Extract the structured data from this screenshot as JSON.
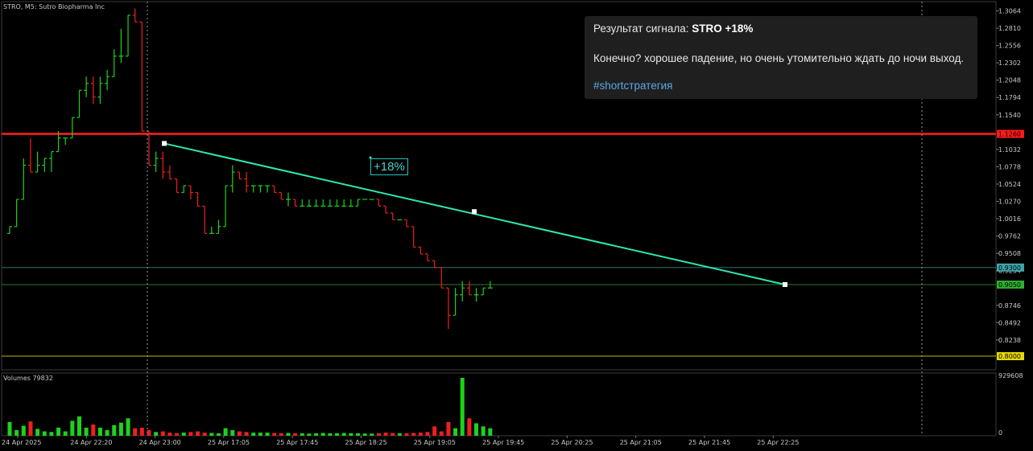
{
  "chart": {
    "symbol_title": "STRO, M5:  Sutro Biopharma Inc",
    "volumes_title": "Volumes 79832",
    "price_axis_ticks": [
      "1.3064",
      "1.2810",
      "1.2556",
      "1.2302",
      "1.2048",
      "1.1794",
      "1.1540",
      "1.1032",
      "1.0778",
      "1.0524",
      "1.0270",
      "1.0016",
      "0.9762",
      "0.9508",
      "0.9254",
      "0.8746",
      "0.8492",
      "0.8238"
    ],
    "price_tags": [
      {
        "label": "1.1260",
        "color": "#ff1a1a"
      },
      {
        "label": "0.9300",
        "color": "#3fa3a8"
      },
      {
        "label": "0.9050",
        "color": "#2fae2f"
      },
      {
        "label": "0.8000",
        "color": "#e6d800"
      }
    ],
    "volume_axis_ticks": [
      "929608",
      "0"
    ],
    "time_axis_labels": [
      "24 Apr 2025",
      "24 Apr 22:20",
      "24 Apr 23:00",
      "25 Apr 17:05",
      "25 Apr 17:45",
      "25 Apr 18:25",
      "25 Apr 19:05",
      "25 Apr 19:45",
      "25 Apr 20:25",
      "25 Apr 21:05",
      "25 Apr 21:45",
      "25 Apr 22:25"
    ],
    "signal_label": "+18%",
    "colors": {
      "up": "#1dd21d",
      "down": "#f01e1e",
      "trendline": "#2ee8b0",
      "resistance": "#ff2020",
      "support_green": "#2a7a2a",
      "support_teal": "#2f6e70",
      "support_yellow": "#c9b400",
      "grid": "#1a1a1a"
    }
  },
  "chart_data": {
    "type": "candlestick",
    "title": "STRO, M5:  Sutro Biopharma Inc",
    "price_range": [
      0.78,
      1.32
    ],
    "series": [
      {
        "name": "price_ohlc",
        "values": [
          [
            0.98,
            0.99,
            0.98,
            0.99
          ],
          [
            0.99,
            1.03,
            0.99,
            1.03
          ],
          [
            1.03,
            1.09,
            1.03,
            1.08
          ],
          [
            1.08,
            1.12,
            1.07,
            1.07
          ],
          [
            1.07,
            1.1,
            1.07,
            1.08
          ],
          [
            1.08,
            1.09,
            1.07,
            1.09
          ],
          [
            1.09,
            1.1,
            1.07,
            1.1
          ],
          [
            1.1,
            1.13,
            1.1,
            1.12
          ],
          [
            1.12,
            1.12,
            1.11,
            1.12
          ],
          [
            1.12,
            1.15,
            1.12,
            1.15
          ],
          [
            1.15,
            1.19,
            1.15,
            1.19
          ],
          [
            1.19,
            1.21,
            1.18,
            1.2
          ],
          [
            1.2,
            1.21,
            1.17,
            1.18
          ],
          [
            1.18,
            1.21,
            1.17,
            1.2
          ],
          [
            1.2,
            1.22,
            1.19,
            1.21
          ],
          [
            1.21,
            1.25,
            1.21,
            1.24
          ],
          [
            1.24,
            1.28,
            1.23,
            1.24
          ],
          [
            1.24,
            1.3,
            1.24,
            1.3
          ],
          [
            1.3,
            1.31,
            1.29,
            1.29
          ],
          [
            1.29,
            1.29,
            1.13,
            1.13
          ],
          [
            1.13,
            1.13,
            1.08,
            1.08
          ],
          [
            1.08,
            1.1,
            1.07,
            1.09
          ],
          [
            1.09,
            1.1,
            1.06,
            1.07
          ],
          [
            1.07,
            1.08,
            1.06,
            1.06
          ],
          [
            1.06,
            1.06,
            1.04,
            1.04
          ],
          [
            1.04,
            1.05,
            1.04,
            1.05
          ],
          [
            1.05,
            1.05,
            1.03,
            1.04
          ],
          [
            1.04,
            1.04,
            1.02,
            1.02
          ],
          [
            1.02,
            1.02,
            0.98,
            0.98
          ],
          [
            0.98,
            0.99,
            0.98,
            0.98
          ],
          [
            0.98,
            1.0,
            0.98,
            0.99
          ],
          [
            0.99,
            1.05,
            0.99,
            1.05
          ],
          [
            1.05,
            1.08,
            1.04,
            1.07
          ],
          [
            1.07,
            1.07,
            1.06,
            1.06
          ],
          [
            1.06,
            1.07,
            1.04,
            1.05
          ],
          [
            1.05,
            1.05,
            1.04,
            1.05
          ],
          [
            1.05,
            1.05,
            1.04,
            1.05
          ],
          [
            1.05,
            1.05,
            1.04,
            1.05
          ],
          [
            1.05,
            1.05,
            1.04,
            1.04
          ],
          [
            1.04,
            1.04,
            1.03,
            1.03
          ],
          [
            1.03,
            1.04,
            1.02,
            1.03
          ],
          [
            1.03,
            1.03,
            1.02,
            1.02
          ],
          [
            1.02,
            1.03,
            1.02,
            1.02
          ],
          [
            1.02,
            1.03,
            1.02,
            1.02
          ],
          [
            1.02,
            1.03,
            1.02,
            1.02
          ],
          [
            1.02,
            1.03,
            1.02,
            1.02
          ],
          [
            1.02,
            1.03,
            1.02,
            1.02
          ],
          [
            1.02,
            1.03,
            1.02,
            1.02
          ],
          [
            1.02,
            1.03,
            1.02,
            1.02
          ],
          [
            1.02,
            1.03,
            1.02,
            1.02
          ],
          [
            1.02,
            1.03,
            1.02,
            1.03
          ],
          [
            1.03,
            1.03,
            1.03,
            1.03
          ],
          [
            1.03,
            1.03,
            1.03,
            1.03
          ],
          [
            1.03,
            1.03,
            1.02,
            1.02
          ],
          [
            1.02,
            1.02,
            1.01,
            1.01
          ],
          [
            1.01,
            1.01,
            1.0,
            1.0
          ],
          [
            1.0,
            1.0,
            1.0,
            1.0
          ],
          [
            1.0,
            1.0,
            0.99,
            0.99
          ],
          [
            0.99,
            0.99,
            0.96,
            0.96
          ],
          [
            0.96,
            0.96,
            0.95,
            0.95
          ],
          [
            0.95,
            0.95,
            0.94,
            0.94
          ],
          [
            0.94,
            0.94,
            0.93,
            0.93
          ],
          [
            0.93,
            0.93,
            0.9,
            0.9
          ],
          [
            0.9,
            0.9,
            0.84,
            0.86
          ],
          [
            0.86,
            0.9,
            0.86,
            0.89
          ],
          [
            0.89,
            0.91,
            0.88,
            0.9
          ],
          [
            0.9,
            0.91,
            0.89,
            0.89
          ],
          [
            0.89,
            0.9,
            0.88,
            0.89
          ],
          [
            0.89,
            0.9,
            0.89,
            0.9
          ],
          [
            0.9,
            0.91,
            0.9,
            0.9
          ]
        ]
      },
      {
        "name": "Volumes",
        "values": [
          220000,
          90000,
          160000,
          230000,
          110000,
          70000,
          60000,
          130000,
          70000,
          240000,
          310000,
          130000,
          180000,
          130000,
          90000,
          170000,
          210000,
          280000,
          120000,
          130000,
          90000,
          60000,
          70000,
          50000,
          40000,
          50000,
          60000,
          70000,
          50000,
          45000,
          40000,
          120000,
          90000,
          70000,
          60000,
          50000,
          50000,
          50000,
          45000,
          40000,
          45000,
          40000,
          40000,
          35000,
          40000,
          45000,
          40000,
          40000,
          45000,
          40000,
          40000,
          35000,
          35000,
          40000,
          50000,
          45000,
          40000,
          40000,
          45000,
          50000,
          60000,
          150000,
          70000,
          220000,
          120000,
          929608,
          280000,
          200000,
          150000,
          120000
        ]
      }
    ],
    "annotations": [
      "+18%"
    ]
  },
  "signal_card": {
    "title_prefix": "Результат сигнала: ",
    "title_value": "STRO +18%",
    "message": "Конечно? хорошее падение, но очень утомительно ждать до ночи выход.",
    "hashtag": "#shortстратегия"
  }
}
